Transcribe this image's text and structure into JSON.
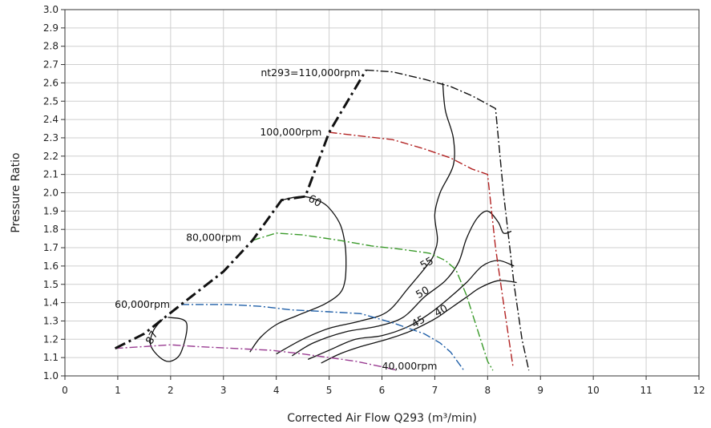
{
  "chart_data": {
    "type": "line",
    "title": "",
    "xlabel": "Corrected Air Flow Q293  (m³/min)",
    "ylabel": "Pressure Ratio",
    "xlim": [
      0,
      12
    ],
    "ylim": [
      1.0,
      3.0
    ],
    "grid": true,
    "x_ticks": [
      "0",
      "1",
      "2",
      "3",
      "4",
      "5",
      "6",
      "7",
      "8",
      "9",
      "10",
      "11",
      "12"
    ],
    "y_ticks": [
      "1.0",
      "1.1",
      "1.2",
      "1.3",
      "1.4",
      "1.5",
      "1.6",
      "1.7",
      "1.8",
      "1.9",
      "2.0",
      "2.1",
      "2.2",
      "2.3",
      "2.4",
      "2.5",
      "2.6",
      "2.7",
      "2.8",
      "2.9",
      "3.0"
    ],
    "surge_line": {
      "color": "#111111",
      "points": [
        [
          0.95,
          1.15
        ],
        [
          1.5,
          1.23
        ],
        [
          2.2,
          1.39
        ],
        [
          3.0,
          1.57
        ],
        [
          3.55,
          1.74
        ],
        [
          4.1,
          1.96
        ],
        [
          4.55,
          1.98
        ],
        [
          5.0,
          2.33
        ],
        [
          5.7,
          2.67
        ]
      ]
    },
    "speed_lines": [
      {
        "label": "nt293=110,000rpm",
        "color": "#111111",
        "points": [
          [
            5.7,
            2.67
          ],
          [
            6.2,
            2.66
          ],
          [
            6.8,
            2.62
          ],
          [
            7.3,
            2.58
          ],
          [
            7.7,
            2.53
          ],
          [
            8.15,
            2.46
          ],
          [
            8.3,
            2.0
          ],
          [
            8.5,
            1.5
          ],
          [
            8.65,
            1.2
          ],
          [
            8.78,
            1.03
          ]
        ]
      },
      {
        "label": "100,000rpm",
        "color": "#b22222",
        "points": [
          [
            5.0,
            2.33
          ],
          [
            5.6,
            2.31
          ],
          [
            6.2,
            2.29
          ],
          [
            6.8,
            2.24
          ],
          [
            7.3,
            2.19
          ],
          [
            7.7,
            2.13
          ],
          [
            8.0,
            2.1
          ],
          [
            8.15,
            1.7
          ],
          [
            8.3,
            1.4
          ],
          [
            8.48,
            1.05
          ]
        ]
      },
      {
        "label": "80,000rpm",
        "color": "#3a9a2a",
        "points": [
          [
            3.55,
            1.74
          ],
          [
            4.0,
            1.78
          ],
          [
            4.5,
            1.77
          ],
          [
            5.2,
            1.74
          ],
          [
            5.8,
            1.71
          ],
          [
            6.4,
            1.69
          ],
          [
            6.9,
            1.67
          ],
          [
            7.2,
            1.63
          ],
          [
            7.4,
            1.58
          ],
          [
            7.6,
            1.44
          ],
          [
            7.8,
            1.26
          ],
          [
            8.0,
            1.08
          ],
          [
            8.1,
            1.03
          ]
        ]
      },
      {
        "label": "60,000rpm",
        "color": "#1f5fa8",
        "points": [
          [
            2.2,
            1.39
          ],
          [
            2.6,
            1.39
          ],
          [
            3.1,
            1.39
          ],
          [
            3.7,
            1.38
          ],
          [
            4.3,
            1.36
          ],
          [
            5.0,
            1.35
          ],
          [
            5.6,
            1.34
          ],
          [
            6.2,
            1.29
          ],
          [
            6.8,
            1.23
          ],
          [
            7.1,
            1.18
          ],
          [
            7.3,
            1.13
          ],
          [
            7.45,
            1.07
          ],
          [
            7.55,
            1.03
          ]
        ]
      },
      {
        "label": "40,000rpm",
        "color": "#9a3d92",
        "points": [
          [
            0.95,
            1.15
          ],
          [
            1.5,
            1.16
          ],
          [
            2.0,
            1.17
          ],
          [
            2.5,
            1.16
          ],
          [
            3.2,
            1.15
          ],
          [
            3.9,
            1.14
          ],
          [
            4.5,
            1.12
          ],
          [
            5.0,
            1.1
          ],
          [
            5.5,
            1.08
          ],
          [
            6.0,
            1.05
          ],
          [
            6.3,
            1.03
          ]
        ]
      }
    ],
    "efficiency_islands": [
      {
        "label": "87",
        "points": [
          [
            1.95,
            1.32
          ],
          [
            2.3,
            1.29
          ],
          [
            2.2,
            1.13
          ],
          [
            2.0,
            1.08
          ],
          [
            1.8,
            1.1
          ],
          [
            1.62,
            1.17
          ],
          [
            1.68,
            1.25
          ],
          [
            1.85,
            1.31
          ]
        ]
      },
      {
        "label": "60",
        "points": [
          [
            4.1,
            1.96
          ],
          [
            4.5,
            1.98
          ],
          [
            4.85,
            1.95
          ],
          [
            5.05,
            1.9
          ],
          [
            5.22,
            1.82
          ],
          [
            5.3,
            1.72
          ],
          [
            5.32,
            1.62
          ],
          [
            5.3,
            1.52
          ],
          [
            5.2,
            1.45
          ],
          [
            4.9,
            1.39
          ],
          [
            4.4,
            1.33
          ],
          [
            4.0,
            1.28
          ],
          [
            3.7,
            1.21
          ],
          [
            3.5,
            1.13
          ]
        ]
      },
      {
        "label": "55",
        "points": [
          [
            7.15,
            2.6
          ],
          [
            7.2,
            2.45
          ],
          [
            7.35,
            2.3
          ],
          [
            7.35,
            2.15
          ],
          [
            7.1,
            2.0
          ],
          [
            7.0,
            1.88
          ],
          [
            7.05,
            1.75
          ],
          [
            7.0,
            1.68
          ],
          [
            6.9,
            1.62
          ],
          [
            6.5,
            1.48
          ],
          [
            6.1,
            1.35
          ],
          [
            5.6,
            1.3
          ],
          [
            5.0,
            1.26
          ],
          [
            4.5,
            1.2
          ],
          [
            4.0,
            1.12
          ]
        ]
      },
      {
        "label": "50",
        "points": [
          [
            8.45,
            1.79
          ],
          [
            8.3,
            1.78
          ],
          [
            8.2,
            1.84
          ],
          [
            8.0,
            1.9
          ],
          [
            7.8,
            1.86
          ],
          [
            7.6,
            1.75
          ],
          [
            7.45,
            1.62
          ],
          [
            7.2,
            1.52
          ],
          [
            6.8,
            1.43
          ],
          [
            6.4,
            1.32
          ],
          [
            5.9,
            1.27
          ],
          [
            5.3,
            1.24
          ],
          [
            4.7,
            1.18
          ],
          [
            4.3,
            1.11
          ]
        ]
      },
      {
        "label": "45",
        "points": [
          [
            8.5,
            1.6
          ],
          [
            8.2,
            1.63
          ],
          [
            7.9,
            1.6
          ],
          [
            7.6,
            1.51
          ],
          [
            7.25,
            1.42
          ],
          [
            6.9,
            1.34
          ],
          [
            6.5,
            1.27
          ],
          [
            6.0,
            1.22
          ],
          [
            5.5,
            1.2
          ],
          [
            5.0,
            1.14
          ],
          [
            4.6,
            1.09
          ]
        ]
      },
      {
        "label": "40",
        "points": [
          [
            8.55,
            1.51
          ],
          [
            8.2,
            1.52
          ],
          [
            7.85,
            1.48
          ],
          [
            7.6,
            1.43
          ],
          [
            7.3,
            1.37
          ],
          [
            7.05,
            1.32
          ],
          [
            6.8,
            1.28
          ],
          [
            6.5,
            1.24
          ],
          [
            6.1,
            1.2
          ],
          [
            5.6,
            1.16
          ],
          [
            5.2,
            1.12
          ],
          [
            4.85,
            1.07
          ]
        ]
      }
    ],
    "efficiency_labels": [
      {
        "text": "87",
        "x": 1.7,
        "y": 1.2,
        "angle": -60
      },
      {
        "text": "60",
        "x": 4.7,
        "y": 1.94,
        "angle": 30
      },
      {
        "text": "55",
        "x": 6.88,
        "y": 1.6,
        "angle": -30
      },
      {
        "text": "50",
        "x": 6.8,
        "y": 1.44,
        "angle": -30
      },
      {
        "text": "45",
        "x": 6.72,
        "y": 1.28,
        "angle": -30
      },
      {
        "text": "40",
        "x": 7.15,
        "y": 1.34,
        "angle": -30
      }
    ],
    "speed_labels": [
      {
        "text": "nt293=110,000rpm",
        "x": 5.65,
        "y": 2.655
      },
      {
        "text": "100,000rpm",
        "x": 4.92,
        "y": 2.33
      },
      {
        "text": "80,000rpm",
        "x": 3.4,
        "y": 1.755
      },
      {
        "text": "60,000rpm",
        "x": 2.05,
        "y": 1.39
      },
      {
        "text": "40,000rpm",
        "x": 6.0,
        "y": 1.035
      }
    ]
  }
}
